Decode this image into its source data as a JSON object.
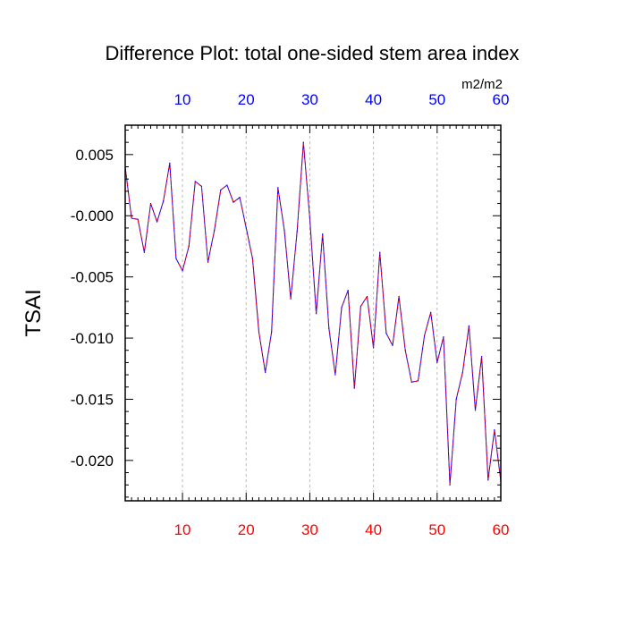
{
  "chart_data": {
    "type": "line",
    "title": "Difference Plot: total one-sided stem area index",
    "ylabel": "TSAI",
    "units": "m2/m2",
    "xlim": [
      1,
      60
    ],
    "ylim": [
      -0.0233,
      0.0074
    ],
    "grid": "vertical dashed at major x ticks",
    "x_major_ticks": [
      10,
      20,
      30,
      40,
      50,
      60
    ],
    "x_tick_labels": [
      "10",
      "20",
      "30",
      "40",
      "50",
      "60"
    ],
    "y_major_ticks": [
      0.005,
      0.0,
      -0.005,
      -0.01,
      -0.015,
      -0.02
    ],
    "y_tick_labels": [
      "0.005",
      "-0.000",
      "-0.005",
      "-0.010",
      "-0.015",
      "-0.020"
    ],
    "colors": {
      "bottom_axis_labels": "#ff0000",
      "top_axis_labels": "#0000ff",
      "series_a": "#0000ff",
      "series_b": "#ff0000"
    },
    "x": [
      1,
      2,
      3,
      4,
      5,
      6,
      7,
      8,
      9,
      10,
      11,
      12,
      13,
      14,
      15,
      16,
      17,
      18,
      19,
      20,
      21,
      22,
      23,
      24,
      25,
      26,
      27,
      28,
      29,
      30,
      31,
      32,
      33,
      34,
      35,
      36,
      37,
      38,
      39,
      40,
      41,
      42,
      43,
      44,
      45,
      46,
      47,
      48,
      49,
      50,
      51,
      52,
      53,
      54,
      55,
      56,
      57,
      58,
      59,
      60
    ],
    "series": [
      {
        "values": [
          0.004,
          -0.0002,
          -0.0003,
          -0.003,
          0.001,
          -0.0005,
          0.0012,
          0.0043,
          -0.0035,
          -0.0045,
          -0.0025,
          0.0028,
          0.0024,
          -0.0038,
          -0.0012,
          0.0021,
          0.0025,
          0.0011,
          0.0015,
          -0.001,
          -0.0035,
          -0.0095,
          -0.0128,
          -0.0095,
          0.0023,
          -0.0012,
          -0.0068,
          -0.0013,
          0.006,
          -0.0002,
          -0.008,
          -0.0015,
          -0.0092,
          -0.013,
          -0.0075,
          -0.0061,
          -0.0141,
          -0.0074,
          -0.0066,
          -0.0108,
          -0.003,
          -0.0096,
          -0.0106,
          -0.0066,
          -0.011,
          -0.0136,
          -0.0135,
          -0.0098,
          -0.0079,
          -0.012,
          -0.0099,
          -0.022,
          -0.015,
          -0.0128,
          -0.009,
          -0.0159,
          -0.0115,
          -0.0216,
          -0.0175,
          -0.0217
        ]
      }
    ]
  }
}
